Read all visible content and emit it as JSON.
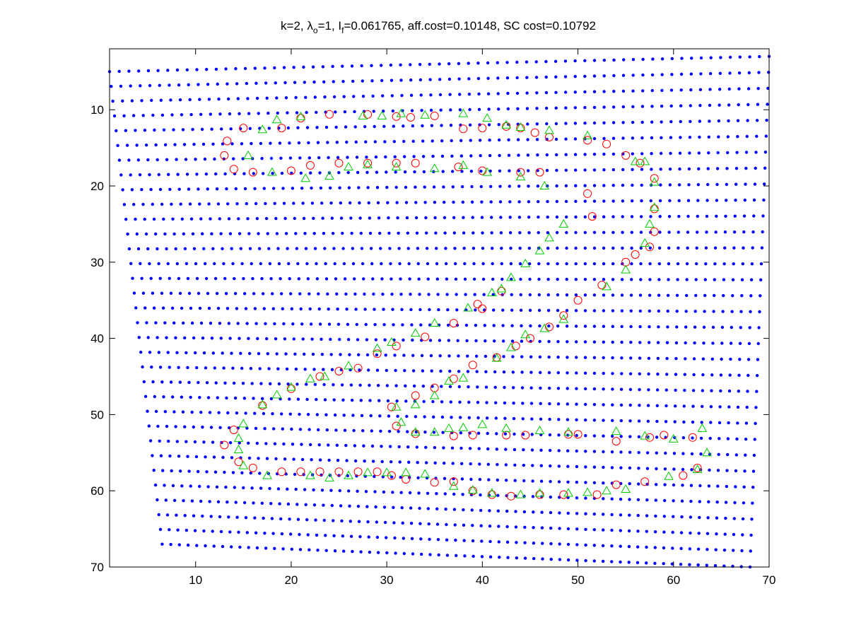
{
  "colors": {
    "background": "#ffffff",
    "axes": "#000000",
    "grid_points": "#0000ff",
    "circles": "#ff0000",
    "triangles": "#00cc00"
  },
  "title": {
    "prefix": "k=2, ",
    "lambda": "λ",
    "lambda_sub": "o",
    "lambda_eq": "=1, I",
    "I_sub": "f",
    "rest": "=0.061765, aff.cost=0.10148, SC cost=0.10792"
  },
  "chart_data": {
    "type": "scatter",
    "title": "k=2, λo=1, If=0.061765, aff.cost=0.10148, SC cost=0.10792",
    "xlabel": "",
    "ylabel": "",
    "xlim": [
      1,
      70
    ],
    "ylim": [
      70,
      2
    ],
    "y_reversed": true,
    "grid": false,
    "x_ticks": [
      "10",
      "20",
      "30",
      "40",
      "50",
      "60",
      "70"
    ],
    "y_ticks": [
      "10",
      "20",
      "30",
      "40",
      "50",
      "60",
      "70"
    ],
    "warped_grid": {
      "marker": "*",
      "columns": 69,
      "rows": 33,
      "corners": {
        "top_left": [
          1.0,
          5.0
        ],
        "top_right": [
          70.0,
          3.0
        ],
        "bottom_left": [
          6.5,
          67.0
        ],
        "bottom_right": [
          68.0,
          70.0
        ]
      }
    },
    "series": [
      {
        "marker": "o",
        "points": [
          [
            13.3,
            14.1
          ],
          [
            15,
            12.4
          ],
          [
            19,
            12.4
          ],
          [
            21,
            11.1
          ],
          [
            24,
            10.6
          ],
          [
            28,
            10.6
          ],
          [
            31,
            10.9
          ],
          [
            32.5,
            11
          ],
          [
            35,
            10.8
          ],
          [
            38,
            12.5
          ],
          [
            40,
            12.4
          ],
          [
            42.5,
            12.2
          ],
          [
            44,
            12.4
          ],
          [
            45.5,
            13
          ],
          [
            47,
            13.6
          ],
          [
            51,
            14
          ],
          [
            53,
            14.5
          ],
          [
            55,
            16
          ],
          [
            56.5,
            17
          ],
          [
            58,
            19
          ],
          [
            13,
            16
          ],
          [
            14,
            17.8
          ],
          [
            16,
            18.2
          ],
          [
            20,
            18
          ],
          [
            22,
            17.3
          ],
          [
            25,
            17
          ],
          [
            28,
            17
          ],
          [
            31,
            17
          ],
          [
            33,
            17
          ],
          [
            37.5,
            17.5
          ],
          [
            40,
            18
          ],
          [
            44,
            18.2
          ],
          [
            46,
            18.2
          ],
          [
            51,
            21
          ],
          [
            51.5,
            24
          ],
          [
            58,
            23
          ],
          [
            58,
            26
          ],
          [
            57.5,
            28
          ],
          [
            56,
            29
          ],
          [
            55,
            30
          ],
          [
            52.5,
            33
          ],
          [
            50,
            35
          ],
          [
            48.5,
            37
          ],
          [
            47,
            38.5
          ],
          [
            45,
            40
          ],
          [
            43.5,
            41
          ],
          [
            41.5,
            42.5
          ],
          [
            39,
            43.5
          ],
          [
            37,
            45.3
          ],
          [
            35,
            46.5
          ],
          [
            33,
            47.5
          ],
          [
            30.5,
            49
          ],
          [
            42,
            33.8
          ],
          [
            39.5,
            35.5
          ],
          [
            40,
            36.1
          ],
          [
            37,
            38
          ],
          [
            34,
            39.8
          ],
          [
            31,
            41
          ],
          [
            29,
            42
          ],
          [
            27,
            43.9
          ],
          [
            25,
            44.3
          ],
          [
            23,
            45
          ],
          [
            20,
            46.6
          ],
          [
            17,
            48.8
          ],
          [
            14,
            52
          ],
          [
            13,
            54
          ],
          [
            14.5,
            56.2
          ],
          [
            16,
            57
          ],
          [
            19,
            57.5
          ],
          [
            21,
            57.5
          ],
          [
            23,
            57.5
          ],
          [
            25,
            57.5
          ],
          [
            27,
            57.5
          ],
          [
            29,
            57.5
          ],
          [
            30.5,
            58
          ],
          [
            32,
            58.5
          ],
          [
            35,
            58.9
          ],
          [
            37,
            58.8
          ],
          [
            39,
            60
          ],
          [
            41,
            60.5
          ],
          [
            43,
            60.7
          ],
          [
            46,
            60.5
          ],
          [
            48.5,
            60.5
          ],
          [
            52,
            60.5
          ],
          [
            54,
            59.2
          ],
          [
            57,
            58.8
          ],
          [
            61,
            58
          ],
          [
            62.5,
            57
          ],
          [
            31,
            51.5
          ],
          [
            33,
            52.5
          ],
          [
            37,
            52.8
          ],
          [
            39,
            52.7
          ],
          [
            42.5,
            52.7
          ],
          [
            44.5,
            52.7
          ],
          [
            49,
            52.6
          ],
          [
            50,
            52.6
          ],
          [
            54,
            53.5
          ],
          [
            57.5,
            53
          ],
          [
            59,
            52.7
          ],
          [
            62,
            53
          ]
        ]
      },
      {
        "marker": "^",
        "points": [
          [
            17,
            12.6
          ],
          [
            18.5,
            11.3
          ],
          [
            21,
            10.9
          ],
          [
            27.5,
            10.8
          ],
          [
            29.5,
            10.8
          ],
          [
            31.5,
            10.5
          ],
          [
            34,
            10.7
          ],
          [
            38,
            10.5
          ],
          [
            40.5,
            11.1
          ],
          [
            42.5,
            12
          ],
          [
            44,
            12.3
          ],
          [
            47,
            12.7
          ],
          [
            51,
            13.4
          ],
          [
            56,
            16.8
          ],
          [
            57,
            16.8
          ],
          [
            58,
            19.5
          ],
          [
            58,
            22.8
          ],
          [
            57.5,
            25
          ],
          [
            57,
            27.5
          ],
          [
            55,
            31
          ],
          [
            53,
            33.2
          ],
          [
            15.5,
            16
          ],
          [
            18,
            18.2
          ],
          [
            21.5,
            19
          ],
          [
            24,
            18.7
          ],
          [
            26,
            17.5
          ],
          [
            28,
            17.2
          ],
          [
            31,
            17.5
          ],
          [
            35,
            17.7
          ],
          [
            38,
            17.3
          ],
          [
            40.5,
            18.2
          ],
          [
            44,
            18.8
          ],
          [
            46.5,
            20
          ],
          [
            48.5,
            25
          ],
          [
            47,
            26.8
          ],
          [
            46,
            28.5
          ],
          [
            44.5,
            30.2
          ],
          [
            43,
            32
          ],
          [
            42,
            33.5
          ],
          [
            41,
            34
          ],
          [
            38.5,
            36
          ],
          [
            35,
            38
          ],
          [
            33,
            39.3
          ],
          [
            30.5,
            40.5
          ],
          [
            29,
            41.3
          ],
          [
            26,
            43.6
          ],
          [
            23.5,
            45
          ],
          [
            22,
            45.3
          ],
          [
            20,
            46.4
          ],
          [
            18.5,
            47.4
          ],
          [
            17,
            48.7
          ],
          [
            48.5,
            37.5
          ],
          [
            46.5,
            38.7
          ],
          [
            44.5,
            39.5
          ],
          [
            43,
            41.2
          ],
          [
            41.5,
            42.6
          ],
          [
            38,
            45.2
          ],
          [
            36.5,
            45.6
          ],
          [
            35,
            47.5
          ],
          [
            33,
            48.7
          ],
          [
            31,
            49
          ],
          [
            31.5,
            51
          ],
          [
            15,
            51.2
          ],
          [
            14.5,
            53.1
          ],
          [
            14.5,
            54.6
          ],
          [
            15,
            56.7
          ],
          [
            17.5,
            58
          ],
          [
            22,
            58
          ],
          [
            24,
            58.3
          ],
          [
            26,
            58
          ],
          [
            28,
            57.6
          ],
          [
            30,
            57.6
          ],
          [
            32,
            57.6
          ],
          [
            34,
            57.8
          ],
          [
            37,
            59.4
          ],
          [
            39,
            59.9
          ],
          [
            41,
            60.3
          ],
          [
            44,
            60.5
          ],
          [
            46,
            60.3
          ],
          [
            49,
            60.3
          ],
          [
            51,
            60.2
          ],
          [
            53,
            60
          ],
          [
            55,
            59.8
          ],
          [
            59.5,
            58.1
          ],
          [
            62.5,
            57.2
          ],
          [
            33,
            52.3
          ],
          [
            35,
            52.3
          ],
          [
            36.5,
            51.8
          ],
          [
            38,
            51.7
          ],
          [
            40,
            51.3
          ],
          [
            42.5,
            51.8
          ],
          [
            46,
            52.1
          ],
          [
            49,
            52.3
          ],
          [
            54,
            52.2
          ],
          [
            57,
            52.8
          ],
          [
            60,
            53.2
          ],
          [
            63,
            51.8
          ],
          [
            63.5,
            55
          ]
        ]
      }
    ]
  }
}
